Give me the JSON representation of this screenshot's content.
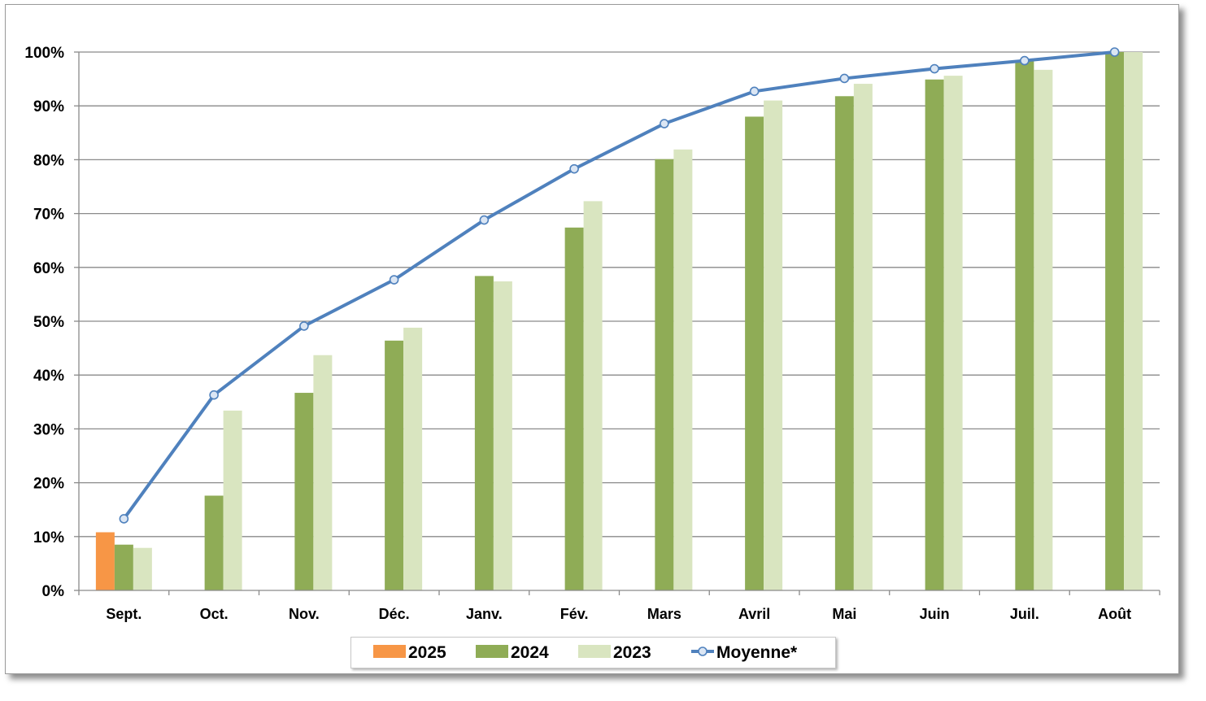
{
  "chart_data": {
    "type": "bar",
    "title": "",
    "xlabel": "",
    "ylabel": "",
    "ylim": [
      0,
      100
    ],
    "y_ticks": [
      "0%",
      "10%",
      "20%",
      "30%",
      "40%",
      "50%",
      "60%",
      "70%",
      "80%",
      "90%",
      "100%"
    ],
    "grid": true,
    "legend_position": "bottom",
    "categories": [
      "Sept.",
      "Oct.",
      "Nov.",
      "Déc.",
      "Janv.",
      "Fév.",
      "Mars",
      "Avril",
      "Mai",
      "Juin",
      "Juil.",
      "Août"
    ],
    "series": [
      {
        "name": "2025",
        "kind": "bar",
        "color": "#f79646",
        "values": [
          10.8,
          null,
          null,
          null,
          null,
          null,
          null,
          null,
          null,
          null,
          null,
          null
        ]
      },
      {
        "name": "2024",
        "kind": "bar",
        "color": "#8fac56",
        "values": [
          8.5,
          17.6,
          36.7,
          46.4,
          58.4,
          67.4,
          80.1,
          88.0,
          91.8,
          94.9,
          98.4,
          100
        ]
      },
      {
        "name": "2023",
        "kind": "bar",
        "color": "#d9e5c0",
        "values": [
          7.9,
          33.4,
          43.7,
          48.8,
          57.4,
          72.3,
          81.9,
          91.0,
          94.1,
          95.6,
          96.7,
          100
        ]
      },
      {
        "name": "Moyenne*",
        "kind": "line",
        "color": "#4f81bd",
        "values": [
          13.3,
          36.3,
          49.1,
          57.7,
          68.8,
          78.3,
          86.7,
          92.7,
          95.1,
          96.9,
          98.4,
          100
        ]
      }
    ]
  }
}
